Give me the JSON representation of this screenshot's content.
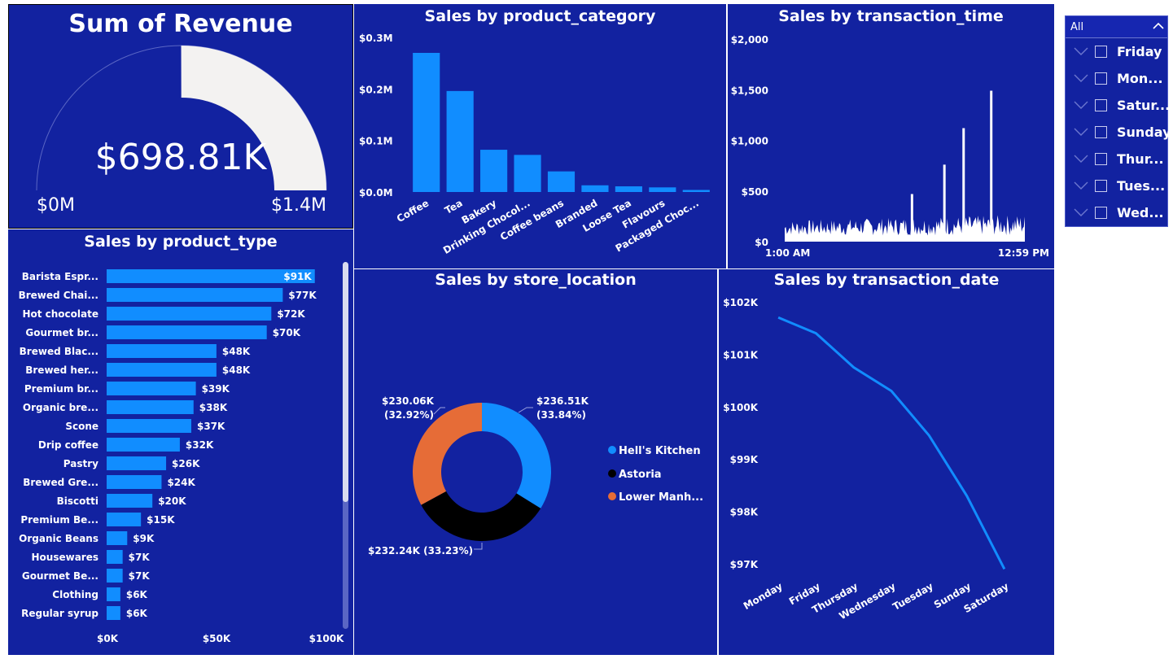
{
  "gauge": {
    "title": "Sum of Revenue",
    "value_label": "$698.81K",
    "min_label": "$0M",
    "max_label": "$1.4M",
    "value": 698.81,
    "max": 1400
  },
  "slicer": {
    "selected": "All",
    "items": [
      "Friday",
      "Mon...",
      "Satur...",
      "Sunday",
      "Thur...",
      "Tues...",
      "Wed..."
    ]
  },
  "colors": {
    "panel": "#1222a0",
    "bar": "#118dff",
    "gauge_fill": "#f3f2f1",
    "astoria": "#000000",
    "lower": "#e66c37",
    "hells": "#118dff"
  },
  "chart_data": [
    {
      "type": "bar",
      "title": "Sales by product_category",
      "categories": [
        "Coffee",
        "Tea",
        "Bakery",
        "Drinking Chocol...",
        "Coffee beans",
        "Branded",
        "Loose Tea",
        "Flavours",
        "Packaged Choc..."
      ],
      "values": [
        0.27,
        0.196,
        0.082,
        0.072,
        0.04,
        0.013,
        0.011,
        0.009,
        0.004
      ],
      "yticks": [
        "$0.0M",
        "$0.1M",
        "$0.2M",
        "$0.3M"
      ],
      "ylim": [
        0,
        0.3
      ]
    },
    {
      "type": "area",
      "title": "Sales by transaction_time",
      "x_start_label": "1:00 AM",
      "x_end_label": "12:59 PM",
      "yticks": [
        "$0",
        "$500",
        "$1,000",
        "$1,500",
        "$2,000"
      ],
      "ylim": [
        0,
        2000
      ],
      "spikes": [
        {
          "position": 0.53,
          "value": 470
        },
        {
          "position": 0.665,
          "value": 760
        },
        {
          "position": 0.745,
          "value": 1120
        },
        {
          "position": 0.86,
          "value": 1490
        }
      ],
      "baseline_level": [
        150,
        250
      ]
    },
    {
      "type": "bar",
      "orientation": "horizontal",
      "title": "Sales by product_type",
      "categories": [
        "Barista Espr...",
        "Brewed Chai...",
        "Hot chocolate",
        "Gourmet br...",
        "Brewed Blac...",
        "Brewed her...",
        "Premium br...",
        "Organic bre...",
        "Scone",
        "Drip coffee",
        "Pastry",
        "Brewed Gre...",
        "Biscotti",
        "Premium Be...",
        "Organic Beans",
        "Housewares",
        "Gourmet Be...",
        "Clothing",
        "Regular syrup"
      ],
      "values": [
        91,
        77,
        72,
        70,
        48,
        48,
        39,
        38,
        37,
        32,
        26,
        24,
        20,
        15,
        9,
        7,
        7,
        6,
        6
      ],
      "value_labels": [
        "$91K",
        "$77K",
        "$72K",
        "$70K",
        "$48K",
        "$48K",
        "$39K",
        "$38K",
        "$37K",
        "$32K",
        "$26K",
        "$24K",
        "$20K",
        "$15K",
        "$9K",
        "$7K",
        "$7K",
        "$6K",
        "$6K"
      ],
      "xticks": [
        "$0K",
        "$50K",
        "$100K"
      ],
      "xlim": [
        0,
        100
      ]
    },
    {
      "type": "pie",
      "title": "Sales by store_location",
      "slices": [
        {
          "name": "Hell's Kitchen",
          "value": 236.51,
          "label": "$236.51K",
          "pct": "(33.84%)"
        },
        {
          "name": "Astoria",
          "value": 232.24,
          "label": "$232.24K (33.23%)"
        },
        {
          "name": "Lower Manh...",
          "value": 230.06,
          "label": "$230.06K",
          "pct": "(32.92%)"
        }
      ]
    },
    {
      "type": "line",
      "title": "Sales by transaction_date",
      "categories": [
        "Monday",
        "Friday",
        "Thursday",
        "Wednesday",
        "Tuesday",
        "Sunday",
        "Saturday"
      ],
      "values": [
        101.7,
        101.4,
        100.75,
        100.3,
        99.45,
        98.3,
        96.9
      ],
      "yticks": [
        "$97K",
        "$98K",
        "$99K",
        "$100K",
        "$101K",
        "$102K"
      ],
      "ylim": [
        97,
        102
      ]
    }
  ]
}
